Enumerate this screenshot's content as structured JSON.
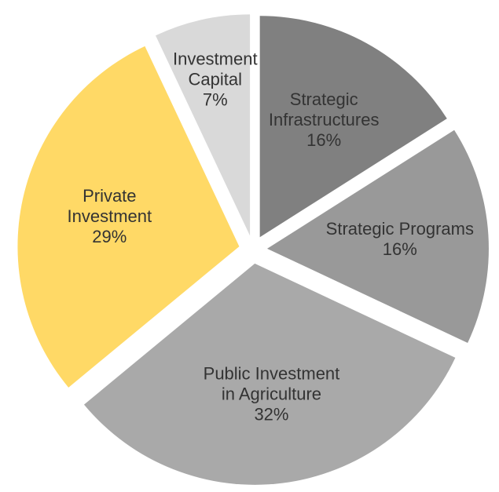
{
  "chart_data": {
    "type": "pie",
    "categories": [
      [
        "Strategic",
        "Infrastructures"
      ],
      [
        "Strategic Programs"
      ],
      [
        "Public Investment",
        "in Agriculture"
      ],
      [
        "Private",
        "Investment"
      ],
      [
        "Investment",
        "Capital"
      ]
    ],
    "values": [
      16,
      16,
      32,
      29,
      7
    ],
    "value_labels": [
      "16%",
      "16%",
      "32%",
      "29%",
      "7%"
    ],
    "colors": [
      "#808080",
      "#999999",
      "#a9a9a9",
      "#ffd966",
      "#d9d9d9"
    ],
    "exploded": true
  }
}
